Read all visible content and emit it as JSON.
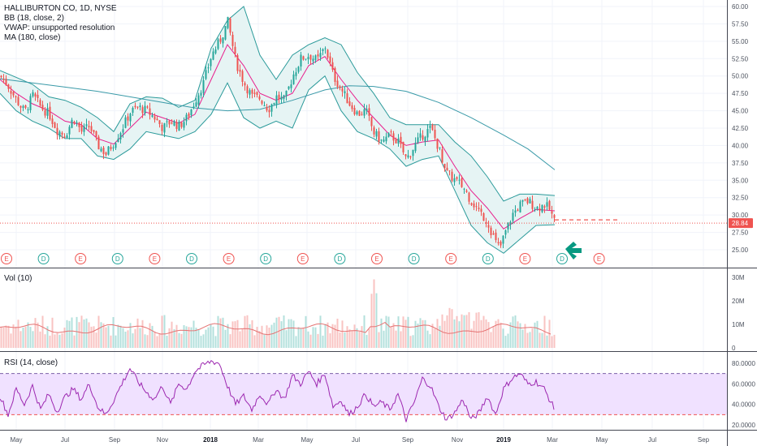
{
  "chart_data": {
    "type": "candlestick",
    "symbol_header": "HALLIBURTON CO, 1D, NYSE",
    "indicators": {
      "bb": "BB (18, close, 2)",
      "vwap": "VWAP: unsupported resolution",
      "ma": "MA (180, close)",
      "vol": "Vol (10)",
      "rsi": "RSI (14, close)"
    },
    "last_price": "28.84",
    "price_axis": {
      "ticks": [
        "60.00",
        "57.50",
        "55.00",
        "52.50",
        "50.00",
        "47.50",
        "45.00",
        "42.50",
        "40.00",
        "37.50",
        "35.00",
        "32.50",
        "30.00",
        "27.50",
        "25.00"
      ],
      "range": [
        24.0,
        60.5
      ]
    },
    "volume_axis": {
      "ticks": [
        "30M",
        "20M",
        "10M",
        "0"
      ],
      "range": [
        0,
        32
      ]
    },
    "rsi_axis": {
      "ticks": [
        "80.0000",
        "60.0000",
        "40.0000",
        "20.0000"
      ],
      "range": [
        15,
        88
      ],
      "upper_band": 70,
      "lower_band": 30
    },
    "time_axis": [
      "May",
      "Jul",
      "Sep",
      "Nov",
      "2018",
      "Mar",
      "May",
      "Jul",
      "Sep",
      "Nov",
      "2019",
      "Mar",
      "May",
      "Jul",
      "Sep"
    ],
    "bold_time_labels": [
      "2018",
      "2019"
    ],
    "price_path": [
      [
        0,
        50.0
      ],
      [
        10,
        48.5
      ],
      [
        20,
        46.5
      ],
      [
        30,
        44.8
      ],
      [
        40,
        47.2
      ],
      [
        50,
        45.5
      ],
      [
        60,
        44.5
      ],
      [
        70,
        42.2
      ],
      [
        80,
        41.5
      ],
      [
        90,
        44.0
      ],
      [
        100,
        42.0
      ],
      [
        110,
        42.8
      ],
      [
        120,
        40.0
      ],
      [
        130,
        38.8
      ],
      [
        140,
        40.5
      ],
      [
        150,
        42.5
      ],
      [
        160,
        44.8
      ],
      [
        170,
        45.5
      ],
      [
        180,
        45.0
      ],
      [
        190,
        44.0
      ],
      [
        200,
        42.5
      ],
      [
        210,
        43.5
      ],
      [
        220,
        42.8
      ],
      [
        230,
        44.0
      ],
      [
        240,
        46.5
      ],
      [
        250,
        49.0
      ],
      [
        260,
        53.0
      ],
      [
        270,
        55.0
      ],
      [
        280,
        57.8
      ],
      [
        290,
        52.0
      ],
      [
        300,
        49.0
      ],
      [
        310,
        47.0
      ],
      [
        320,
        46.8
      ],
      [
        330,
        45.2
      ],
      [
        340,
        47.0
      ],
      [
        350,
        46.5
      ],
      [
        360,
        50.0
      ],
      [
        370,
        52.5
      ],
      [
        380,
        53.0
      ],
      [
        390,
        52.2
      ],
      [
        400,
        54.2
      ],
      [
        410,
        50.0
      ],
      [
        420,
        48.0
      ],
      [
        430,
        46.0
      ],
      [
        440,
        44.5
      ],
      [
        450,
        45.0
      ],
      [
        460,
        41.8
      ],
      [
        470,
        40.5
      ],
      [
        480,
        41.5
      ],
      [
        490,
        40.5
      ],
      [
        500,
        38.0
      ],
      [
        510,
        40.0
      ],
      [
        520,
        41.5
      ],
      [
        530,
        42.5
      ],
      [
        540,
        39.5
      ],
      [
        550,
        36.0
      ],
      [
        560,
        35.0
      ],
      [
        570,
        34.0
      ],
      [
        580,
        32.0
      ],
      [
        590,
        30.5
      ],
      [
        600,
        29.0
      ],
      [
        610,
        26.0
      ],
      [
        615,
        25.2
      ],
      [
        620,
        27.0
      ],
      [
        630,
        30.0
      ],
      [
        640,
        31.5
      ],
      [
        650,
        32.0
      ],
      [
        660,
        31.0
      ],
      [
        670,
        31.5
      ],
      [
        676,
        30.8
      ],
      [
        683,
        28.84
      ]
    ],
    "bb_middle": [
      [
        0,
        49.5
      ],
      [
        20,
        47.5
      ],
      [
        40,
        46.0
      ],
      [
        60,
        45.0
      ],
      [
        80,
        43.5
      ],
      [
        100,
        43.0
      ],
      [
        120,
        41.0
      ],
      [
        140,
        40.2
      ],
      [
        160,
        42.5
      ],
      [
        180,
        44.8
      ],
      [
        200,
        44.0
      ],
      [
        220,
        43.2
      ],
      [
        240,
        44.5
      ],
      [
        260,
        49.5
      ],
      [
        280,
        54.5
      ],
      [
        300,
        51.5
      ],
      [
        320,
        47.5
      ],
      [
        340,
        46.5
      ],
      [
        360,
        47.5
      ],
      [
        380,
        51.5
      ],
      [
        400,
        52.8
      ],
      [
        420,
        49.5
      ],
      [
        440,
        46.5
      ],
      [
        460,
        44.0
      ],
      [
        480,
        41.5
      ],
      [
        500,
        40.0
      ],
      [
        520,
        40.5
      ],
      [
        540,
        40.8
      ],
      [
        560,
        37.0
      ],
      [
        580,
        33.5
      ],
      [
        600,
        31.0
      ],
      [
        620,
        28.0
      ],
      [
        640,
        29.5
      ],
      [
        660,
        30.8
      ],
      [
        683,
        30.6
      ]
    ],
    "bb_upper": [
      [
        0,
        50.8
      ],
      [
        20,
        49.8
      ],
      [
        40,
        48.8
      ],
      [
        60,
        47.0
      ],
      [
        80,
        46.5
      ],
      [
        100,
        45.5
      ],
      [
        120,
        44.0
      ],
      [
        140,
        42.0
      ],
      [
        160,
        46.0
      ],
      [
        180,
        47.0
      ],
      [
        200,
        46.8
      ],
      [
        220,
        45.5
      ],
      [
        240,
        46.5
      ],
      [
        260,
        54.0
      ],
      [
        280,
        58.0
      ],
      [
        300,
        60.0
      ],
      [
        320,
        53.0
      ],
      [
        340,
        49.5
      ],
      [
        360,
        53.0
      ],
      [
        380,
        54.5
      ],
      [
        400,
        55.5
      ],
      [
        420,
        54.5
      ],
      [
        440,
        50.5
      ],
      [
        460,
        47.5
      ],
      [
        480,
        44.0
      ],
      [
        500,
        43.0
      ],
      [
        520,
        43.0
      ],
      [
        540,
        43.0
      ],
      [
        560,
        40.5
      ],
      [
        580,
        38.5
      ],
      [
        600,
        35.5
      ],
      [
        620,
        32.0
      ],
      [
        640,
        33.0
      ],
      [
        660,
        33.0
      ],
      [
        683,
        32.8
      ]
    ],
    "bb_lower": [
      [
        0,
        47.5
      ],
      [
        20,
        45.0
      ],
      [
        40,
        43.5
      ],
      [
        60,
        42.5
      ],
      [
        80,
        41.0
      ],
      [
        100,
        41.0
      ],
      [
        120,
        38.5
      ],
      [
        140,
        38.0
      ],
      [
        160,
        39.5
      ],
      [
        180,
        42.0
      ],
      [
        200,
        41.5
      ],
      [
        220,
        41.0
      ],
      [
        240,
        42.0
      ],
      [
        260,
        44.5
      ],
      [
        280,
        49.0
      ],
      [
        300,
        44.0
      ],
      [
        320,
        42.5
      ],
      [
        340,
        43.5
      ],
      [
        360,
        42.5
      ],
      [
        380,
        48.0
      ],
      [
        400,
        50.0
      ],
      [
        420,
        45.0
      ],
      [
        440,
        42.0
      ],
      [
        460,
        41.0
      ],
      [
        480,
        39.5
      ],
      [
        500,
        37.0
      ],
      [
        520,
        38.0
      ],
      [
        540,
        38.5
      ],
      [
        560,
        33.5
      ],
      [
        580,
        28.5
      ],
      [
        600,
        26.0
      ],
      [
        620,
        24.5
      ],
      [
        640,
        26.5
      ],
      [
        660,
        28.5
      ],
      [
        683,
        28.6
      ]
    ],
    "ma180": [
      [
        0,
        49.6
      ],
      [
        40,
        49.0
      ],
      [
        80,
        48.4
      ],
      [
        120,
        47.8
      ],
      [
        160,
        47.0
      ],
      [
        200,
        46.2
      ],
      [
        240,
        45.4
      ],
      [
        280,
        45.0
      ],
      [
        320,
        45.2
      ],
      [
        360,
        46.5
      ],
      [
        400,
        48.0
      ],
      [
        430,
        48.6
      ],
      [
        460,
        48.5
      ],
      [
        500,
        47.8
      ],
      [
        540,
        46.2
      ],
      [
        580,
        44.0
      ],
      [
        620,
        41.5
      ],
      [
        650,
        39.5
      ],
      [
        683,
        36.5
      ]
    ],
    "event_markers": [
      {
        "label": "E",
        "color": "#ef5350"
      },
      {
        "label": "D",
        "color": "#26a69a"
      },
      {
        "label": "E",
        "color": "#ef5350"
      },
      {
        "label": "D",
        "color": "#26a69a"
      },
      {
        "label": "E",
        "color": "#ef5350"
      },
      {
        "label": "D",
        "color": "#26a69a"
      },
      {
        "label": "E",
        "color": "#ef5350"
      },
      {
        "label": "D",
        "color": "#26a69a"
      },
      {
        "label": "E",
        "color": "#ef5350"
      },
      {
        "label": "D",
        "color": "#26a69a"
      },
      {
        "label": "E",
        "color": "#ef5350"
      },
      {
        "label": "D",
        "color": "#26a69a"
      },
      {
        "label": "E",
        "color": "#ef5350"
      },
      {
        "label": "D",
        "color": "#26a69a"
      },
      {
        "label": "E",
        "color": "#ef5350"
      },
      {
        "label": "D",
        "color": "#26a69a"
      },
      {
        "label": "E",
        "color": "#ef5350"
      }
    ],
    "rsi_path": [
      [
        0,
        48
      ],
      [
        10,
        30
      ],
      [
        20,
        55
      ],
      [
        30,
        40
      ],
      [
        40,
        58
      ],
      [
        50,
        35
      ],
      [
        60,
        50
      ],
      [
        70,
        33
      ],
      [
        80,
        47
      ],
      [
        90,
        55
      ],
      [
        100,
        45
      ],
      [
        110,
        60
      ],
      [
        120,
        38
      ],
      [
        130,
        30
      ],
      [
        140,
        44
      ],
      [
        150,
        60
      ],
      [
        160,
        75
      ],
      [
        170,
        62
      ],
      [
        180,
        52
      ],
      [
        190,
        45
      ],
      [
        200,
        58
      ],
      [
        210,
        40
      ],
      [
        220,
        60
      ],
      [
        230,
        55
      ],
      [
        240,
        72
      ],
      [
        250,
        78
      ],
      [
        260,
        82
      ],
      [
        270,
        80
      ],
      [
        280,
        58
      ],
      [
        290,
        40
      ],
      [
        300,
        48
      ],
      [
        310,
        35
      ],
      [
        320,
        50
      ],
      [
        330,
        40
      ],
      [
        340,
        55
      ],
      [
        350,
        45
      ],
      [
        360,
        68
      ],
      [
        370,
        60
      ],
      [
        380,
        72
      ],
      [
        390,
        60
      ],
      [
        400,
        70
      ],
      [
        410,
        38
      ],
      [
        420,
        44
      ],
      [
        430,
        30
      ],
      [
        440,
        38
      ],
      [
        450,
        50
      ],
      [
        460,
        38
      ],
      [
        470,
        42
      ],
      [
        480,
        35
      ],
      [
        490,
        50
      ],
      [
        500,
        25
      ],
      [
        510,
        42
      ],
      [
        520,
        65
      ],
      [
        530,
        58
      ],
      [
        540,
        38
      ],
      [
        550,
        25
      ],
      [
        560,
        32
      ],
      [
        570,
        45
      ],
      [
        580,
        25
      ],
      [
        590,
        32
      ],
      [
        600,
        48
      ],
      [
        610,
        30
      ],
      [
        620,
        55
      ],
      [
        630,
        65
      ],
      [
        640,
        70
      ],
      [
        650,
        60
      ],
      [
        660,
        62
      ],
      [
        670,
        55
      ],
      [
        683,
        35
      ]
    ],
    "colors": {
      "up": "#26a69a",
      "down": "#ef5350",
      "bb": "#2b9a9a",
      "bb_fill": "#e6f4f4",
      "bb_mid": "#e91e8c",
      "ma": "#3a9aa8",
      "rsi": "#9c27b0",
      "rsi_fill": "#f0e1ff",
      "vol_ma": "#e57373"
    }
  }
}
